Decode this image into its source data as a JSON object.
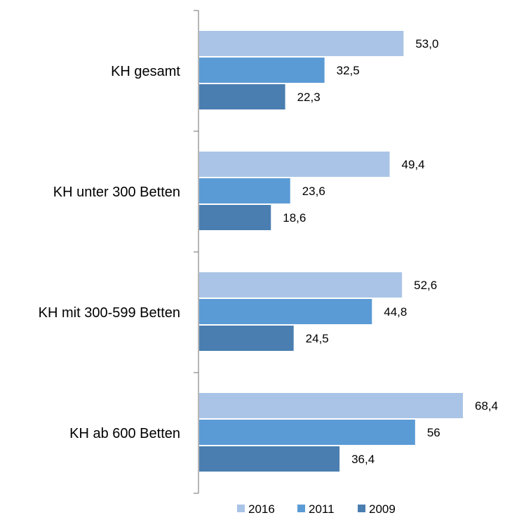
{
  "chart_data": {
    "type": "bar",
    "orientation": "horizontal",
    "categories": [
      "KH gesamt",
      "KH unter 300 Betten",
      "KH mit 300-599 Betten",
      "KH ab 600 Betten"
    ],
    "series": [
      {
        "name": "2016",
        "color": "#a9c4e6",
        "values": [
          53.0,
          49.4,
          52.6,
          68.4
        ],
        "labels": [
          "53,0",
          "49,4",
          "52,6",
          "68,4"
        ]
      },
      {
        "name": "2011",
        "color": "#5b9bd5",
        "values": [
          32.5,
          23.6,
          44.8,
          56
        ],
        "labels": [
          "32,5",
          "23,6",
          "44,8",
          "56"
        ]
      },
      {
        "name": "2009",
        "color": "#4a7eb0",
        "values": [
          22.3,
          18.6,
          24.5,
          36.4
        ],
        "labels": [
          "22,3",
          "18,6",
          "24,5",
          "36,4"
        ]
      }
    ],
    "xlim": [
      0,
      70
    ],
    "legend": {
      "position": "bottom",
      "order": [
        "2016",
        "2011",
        "2009"
      ]
    },
    "grid": false
  }
}
